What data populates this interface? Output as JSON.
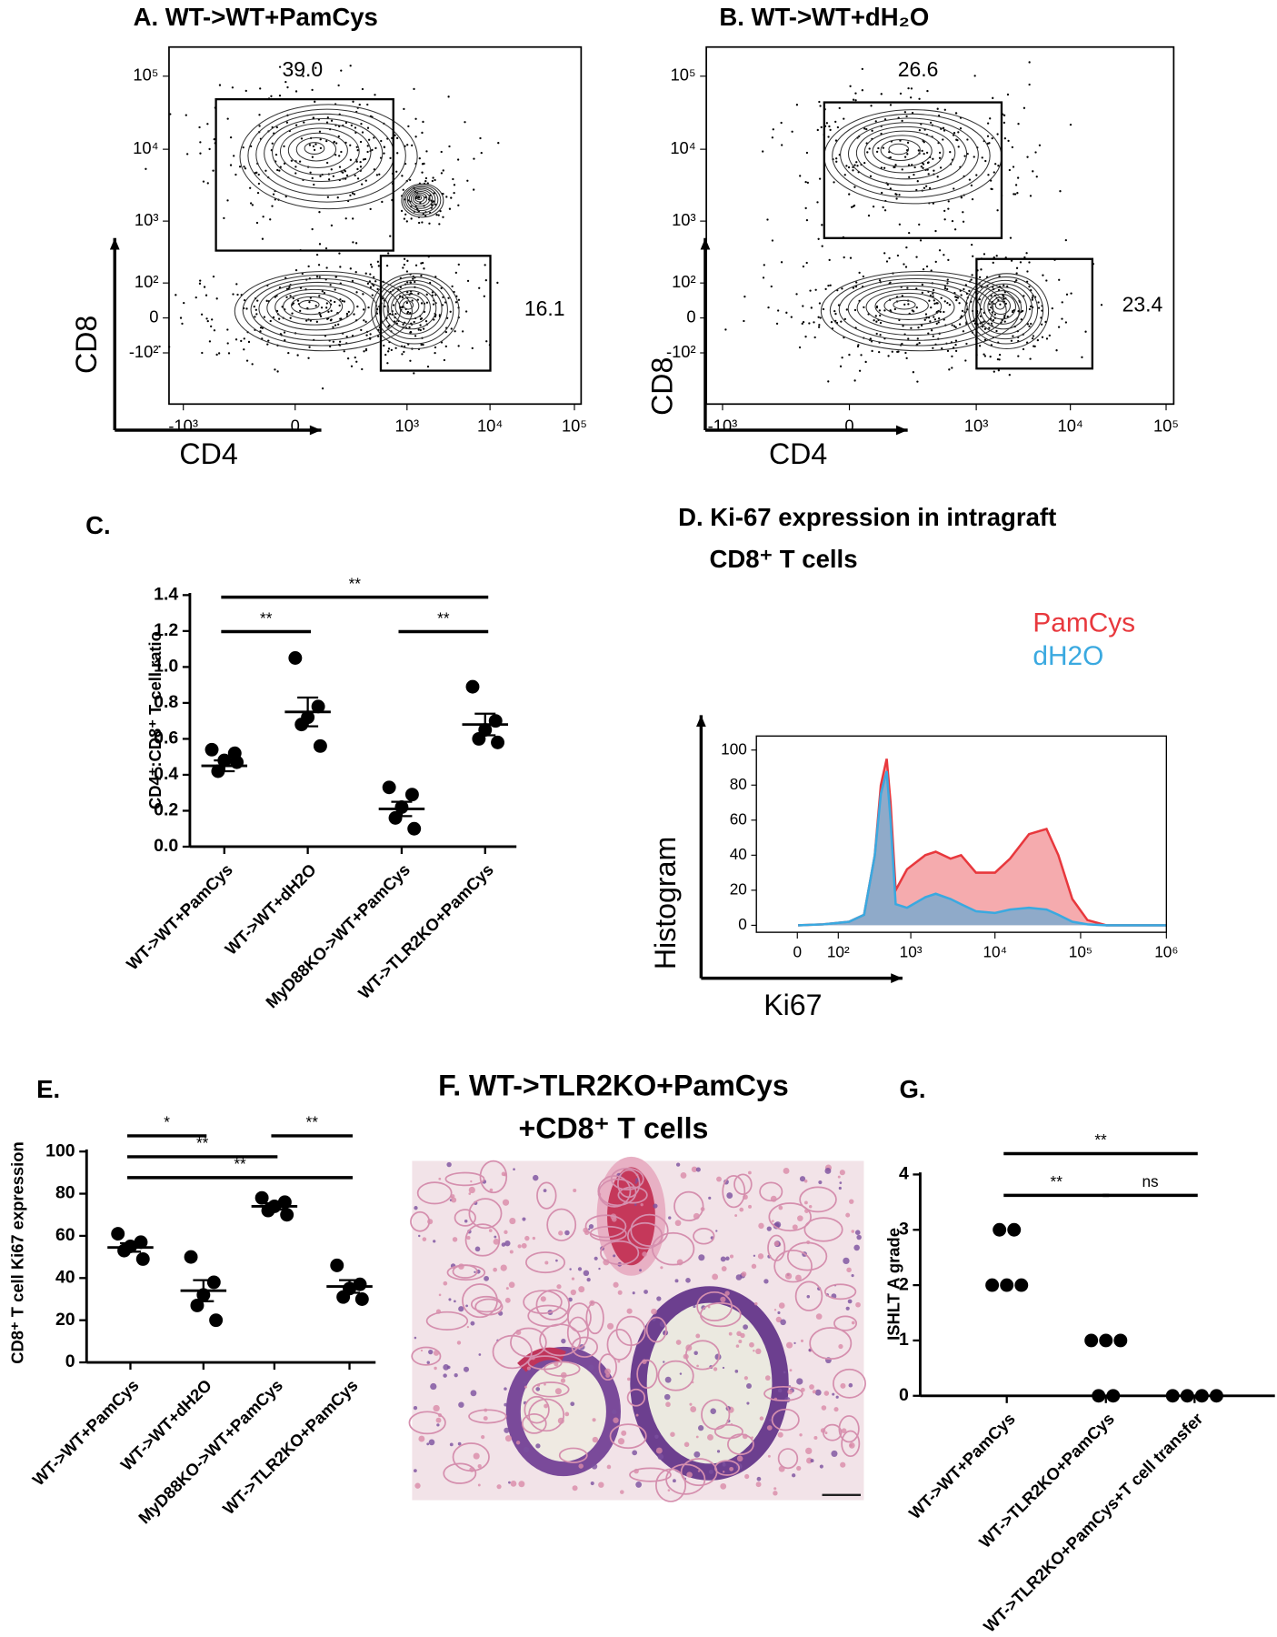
{
  "chart_data": [
    {
      "type": "flow-contour",
      "title": "A. WT->WT+PamCys",
      "x_label": "CD4",
      "y_label": "CD8",
      "xscale": "biexponential",
      "yscale": "biexponential",
      "xlim": [
        -1500,
        120000
      ],
      "ylim": [
        -700,
        250000
      ],
      "xticks": [
        {
          "value": -1000,
          "label": "-10³"
        },
        0,
        {
          "value": 1000,
          "label": "10³"
        },
        {
          "value": 10000,
          "label": "10⁴"
        },
        {
          "value": 100000,
          "label": "10⁵"
        }
      ],
      "yticks": [
        {
          "value": -100,
          "label": "-10²"
        },
        0,
        {
          "value": 100,
          "label": "10²"
        },
        {
          "value": 1000,
          "label": "10³"
        },
        {
          "value": 10000,
          "label": "10⁴"
        },
        {
          "value": 100000,
          "label": "10⁵"
        }
      ],
      "gates": [
        {
          "value": 39,
          "label": "39.0"
        },
        16.1
      ]
    },
    {
      "type": "flow-contour",
      "title": "B. WT->WT+dH₂O",
      "x_label": "CD4",
      "y_label": "CD8",
      "xscale": "biexponential",
      "yscale": "biexponential",
      "xlim": [
        -1500,
        120000
      ],
      "ylim": [
        -700,
        250000
      ],
      "xticks": [
        {
          "value": -1000,
          "label": "-10³"
        },
        0,
        {
          "value": 1000,
          "label": "10³"
        },
        {
          "value": 10000,
          "label": "10⁴"
        },
        {
          "value": 100000,
          "label": "10⁵"
        }
      ],
      "yticks": [
        {
          "value": -100,
          "label": "-10²"
        },
        0,
        {
          "value": 100,
          "label": "10²"
        },
        {
          "value": 1000,
          "label": "10³"
        },
        {
          "value": 10000,
          "label": "10⁴"
        },
        {
          "value": 100000,
          "label": "10⁵"
        }
      ],
      "gates": [
        26.6,
        23.4
      ]
    },
    {
      "type": "dot",
      "title": "C.",
      "y_label": "CD4⁺:CD8⁺ T cell ratio",
      "categories": [
        "WT->WT+PamCys",
        "WT->WT+dH2O",
        "MyD88KO->WT+PamCys",
        "WT->TLR2KO+PamCys"
      ],
      "points": [
        [
          0.54,
          0.52,
          0.48,
          0.42,
          0.47
        ],
        [
          1.05,
          0.78,
          0.72,
          0.68,
          0.56
        ],
        [
          0.33,
          0.29,
          0.22,
          0.16,
          0.1
        ],
        [
          0.89,
          0.7,
          0.65,
          0.6,
          0.58
        ]
      ],
      "mean": [
        0.45,
        0.75,
        0.21,
        0.68
      ],
      "sem": [
        0.03,
        0.08,
        0.04,
        0.06
      ],
      "ylim": [
        0,
        1.4
      ],
      "yticks": [
        {
          "value": 0,
          "label": "0.0"
        },
        0.2,
        0.4,
        0.6,
        0.8,
        {
          "value": 1,
          "label": "1.0"
        },
        1.2,
        1.4
      ],
      "annotations": [
        {
          "label": "**",
          "between": [
            0,
            1
          ]
        },
        {
          "label": "**",
          "between": [
            0,
            3
          ]
        },
        {
          "label": "**",
          "between": [
            2,
            3
          ]
        }
      ]
    },
    {
      "type": "histogram-overlay",
      "title": [
        "D. Ki-67 expression in intragraft",
        "CD8⁺ T cells"
      ],
      "x_label": "Ki67",
      "y_label": "Histogram",
      "xscale": "biexponential",
      "x": [
        1,
        50,
        150,
        250,
        350,
        420,
        500,
        560,
        650,
        900,
        1500,
        2000,
        3000,
        4000,
        6000,
        10000,
        15000,
        25000,
        40000,
        55000,
        80000,
        120000,
        200000,
        1000000
      ],
      "series": [
        {
          "name": "PamCys",
          "color": "#e8383d",
          "values": [
            0,
            0.5,
            2,
            6,
            40,
            80,
            95,
            70,
            20,
            32,
            40,
            42,
            38,
            40,
            30,
            30,
            38,
            52,
            55,
            40,
            15,
            3,
            0,
            0
          ]
        },
        {
          "name": "dH2O",
          "color": "#3aa9e0",
          "values": [
            0,
            0.5,
            2,
            6,
            40,
            75,
            88,
            60,
            12,
            10,
            16,
            18,
            15,
            12,
            8,
            7,
            9,
            10,
            9,
            6,
            2,
            0.5,
            0,
            0
          ]
        }
      ],
      "xlim": [
        -100,
        1000000
      ],
      "ylim": [
        -4,
        108
      ],
      "xticks": [
        0,
        {
          "value": 100,
          "label": "10²"
        },
        {
          "value": 1000,
          "label": "10³"
        },
        {
          "value": 10000,
          "label": "10⁴"
        },
        {
          "value": 100000,
          "label": "10⁵"
        },
        {
          "value": 1000000,
          "label": "10⁶"
        }
      ],
      "yticks": [
        0,
        20,
        40,
        60,
        80,
        100
      ]
    },
    {
      "type": "dot",
      "title": "E.",
      "y_label": "CD8⁺ T cell Ki67 expression",
      "categories": [
        "WT->WT+PamCys",
        "WT->WT+dH2O",
        "MyD88KO->WT+PamCys",
        "WT->TLR2KO+PamCys"
      ],
      "points": [
        [
          61,
          57,
          55,
          53,
          49
        ],
        [
          50,
          38,
          32,
          27,
          20
        ],
        [
          78,
          76,
          74,
          72,
          70
        ],
        [
          46,
          37,
          35,
          31,
          30
        ]
      ],
      "mean": [
        54.5,
        34,
        74,
        36
      ],
      "sem": [
        2,
        5,
        1.5,
        3
      ],
      "ylim": [
        0,
        100
      ],
      "yticks": [
        0,
        20,
        40,
        60,
        80,
        100
      ],
      "annotations": [
        {
          "label": "*",
          "between": [
            0,
            1
          ]
        },
        {
          "label": "**",
          "between": [
            0,
            2
          ]
        },
        {
          "label": "**",
          "between": [
            0,
            3
          ]
        },
        {
          "label": "**",
          "between": [
            2,
            3
          ]
        }
      ]
    },
    {
      "type": "image",
      "title": [
        "F. WT->TLR2KO+PamCys",
        "+CD8⁺ T cells"
      ]
    },
    {
      "type": "dot",
      "title": "G.",
      "y_label": "ISHLT A grade",
      "categories": [
        "WT->WT+PamCys",
        "WT->TLR2KO+PamCys",
        "WT->TLR2KO+PamCys+T cell transfer"
      ],
      "points": [
        [
          3,
          3,
          2,
          2,
          2
        ],
        [
          1,
          1,
          1,
          0,
          0
        ],
        [
          0,
          0,
          0,
          0
        ]
      ],
      "ylim": [
        0,
        4
      ],
      "yticks": [
        0,
        1,
        2,
        3,
        4
      ],
      "annotations": [
        {
          "label": "**",
          "between": [
            0,
            2
          ]
        },
        {
          "label": "**",
          "between": [
            0,
            1
          ]
        },
        {
          "label": "ns",
          "between": [
            1,
            2
          ]
        }
      ]
    }
  ]
}
